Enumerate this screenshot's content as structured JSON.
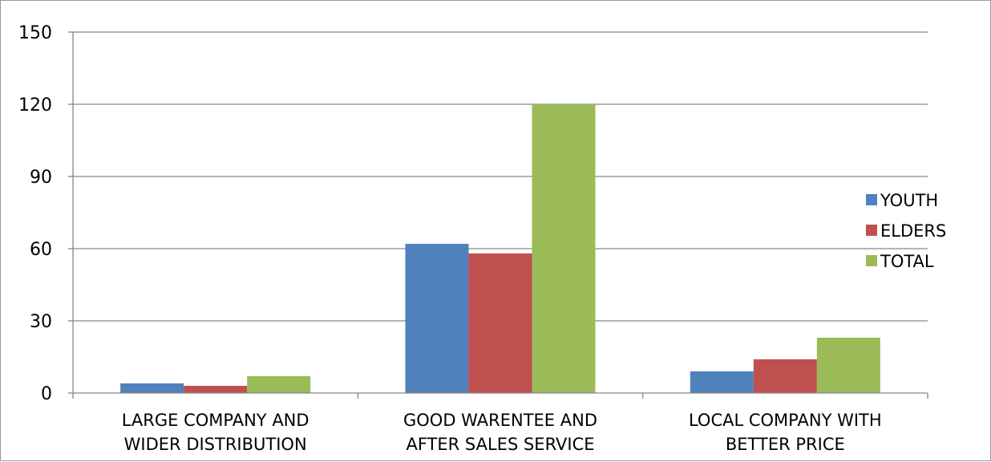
{
  "chart_data": {
    "type": "bar",
    "title": "",
    "xlabel": "",
    "ylabel": "",
    "categories": [
      [
        "LARGE COMPANY AND",
        "WIDER DISTRIBUTION"
      ],
      [
        "GOOD WARENTEE AND",
        "AFTER SALES SERVICE"
      ],
      [
        "LOCAL COMPANY WITH",
        "BETTER PRICE"
      ]
    ],
    "series": [
      {
        "name": "YOUTH",
        "color": "#4f81bd",
        "values": [
          4,
          62,
          9
        ]
      },
      {
        "name": "ELDERS",
        "color": "#c0504d",
        "values": [
          3,
          58,
          14
        ]
      },
      {
        "name": "TOTAL",
        "color": "#9bbb59",
        "values": [
          7,
          120,
          23
        ]
      }
    ],
    "ylim": [
      0,
      150
    ],
    "yticks": [
      0,
      30,
      60,
      90,
      120,
      150
    ],
    "grid": true,
    "legend_position": "right"
  }
}
